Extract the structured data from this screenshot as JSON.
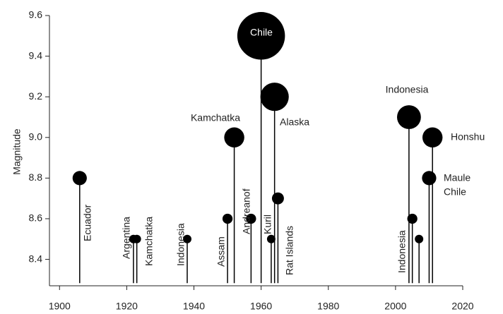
{
  "chart_data": {
    "type": "lollipop",
    "y_label": "Magnitude",
    "color": "#000000",
    "xlim": [
      1897,
      2020
    ],
    "xticks": [
      1900,
      1920,
      1940,
      1960,
      1980,
      2000,
      2020
    ],
    "ylim": [
      8.27,
      9.6
    ],
    "yticks": [
      8.4,
      8.6,
      8.8,
      9.0,
      9.2,
      9.4,
      9.6
    ],
    "ytick_labels": [
      "8.4",
      "8.6",
      "8.8",
      "9.0",
      "9.2",
      "9.4",
      "9.6"
    ],
    "x": [
      1906,
      1922,
      1923,
      1938,
      1950,
      1952,
      1957,
      1960,
      1963,
      1964,
      1965,
      2004,
      2005,
      2007,
      2010,
      2011
    ],
    "values": [
      8.8,
      8.5,
      8.5,
      8.5,
      8.6,
      9.0,
      8.6,
      9.5,
      8.5,
      9.2,
      8.7,
      9.1,
      8.6,
      8.5,
      8.8,
      9.0
    ],
    "labels": [
      [
        "Ecuador"
      ],
      [
        "Argentina"
      ],
      [
        "Kamchatka"
      ],
      [
        "Indonesia"
      ],
      [
        "Assam"
      ],
      [
        "Kamchatka"
      ],
      [
        "Andreanof"
      ],
      [
        "Chile"
      ],
      [
        "Kuril"
      ],
      [
        "Alaska"
      ],
      [
        "Rat Islands"
      ],
      [
        "Indonesia"
      ],
      [
        "Indonesia"
      ],
      null,
      [
        "Maule",
        "Chile"
      ],
      [
        "Honshu"
      ]
    ]
  }
}
